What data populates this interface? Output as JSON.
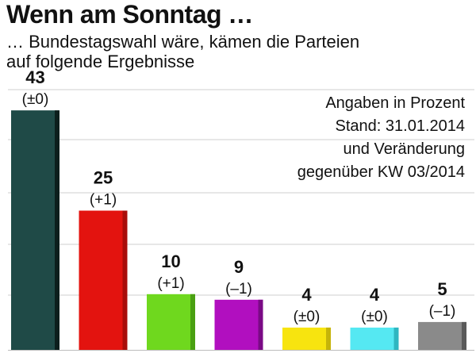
{
  "header": {
    "title": "Wenn am Sonntag …",
    "subtitle_line1": "… Bundestagswahl wäre, kämen die Parteien",
    "subtitle_line2": "auf folgende Ergebnisse"
  },
  "note": {
    "line1": "Angaben in Prozent",
    "line2": "Stand: 31.01.2014",
    "line3": "und Veränderung",
    "line4": "gegenüber KW 03/2014"
  },
  "chart_data": {
    "type": "bar",
    "values": [
      43,
      25,
      10,
      9,
      4,
      4,
      5
    ],
    "value_labels": [
      "43",
      "25",
      "10",
      "9",
      "4",
      "4",
      "5"
    ],
    "change_labels": [
      "(±0)",
      "(+1)",
      "(+1)",
      "(–1)",
      "(±0)",
      "(±0)",
      "(–1)"
    ],
    "colors": [
      "#1f4a47",
      "#e3130f",
      "#6fd81e",
      "#b10fbf",
      "#f7e40f",
      "#55e8f2",
      "#8a8a8a"
    ],
    "shade_colors": [
      "#0c1f1d",
      "#a80d0a",
      "#4aa012",
      "#7a0a85",
      "#c5b40a",
      "#2fb6c0",
      "#5a5a5a"
    ],
    "ylim": [
      0,
      45
    ],
    "grid": true
  }
}
